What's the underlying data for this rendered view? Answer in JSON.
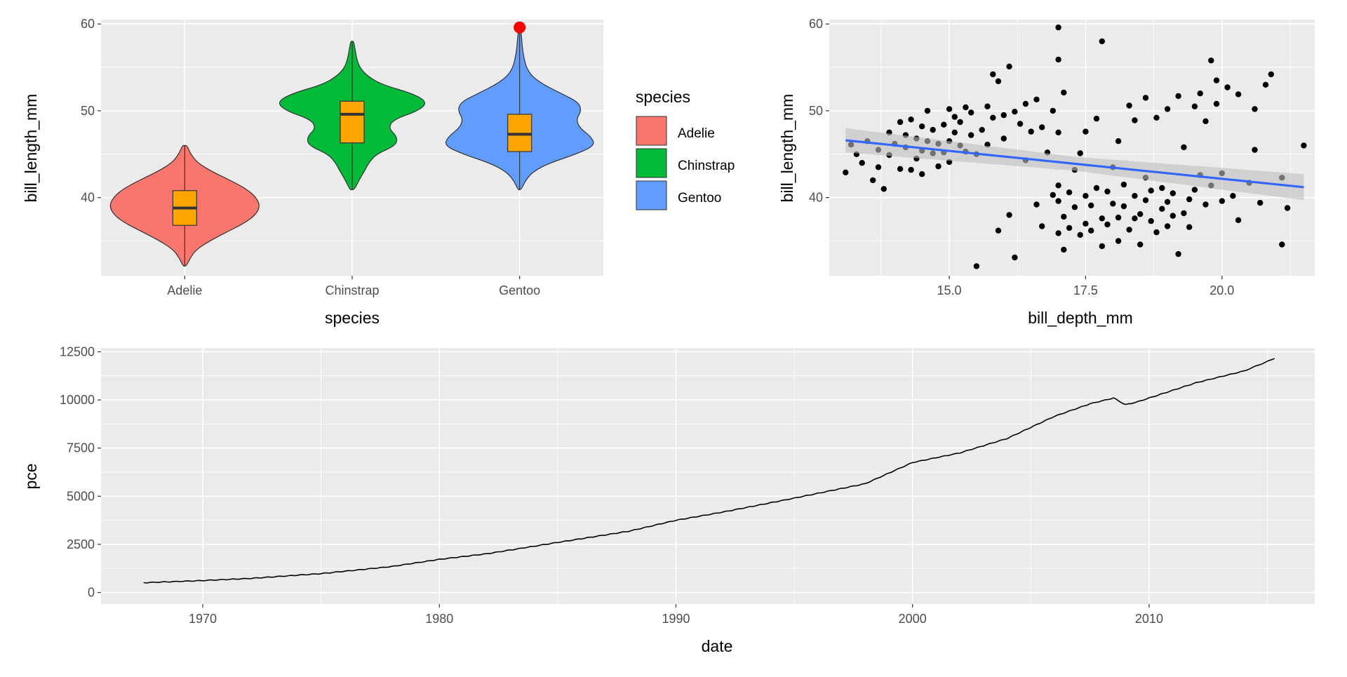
{
  "colors": {
    "panel_bg": "#EBEBEB",
    "grid_major": "#FFFFFF",
    "adelie": "#F8766D",
    "chinstrap": "#00BA38",
    "gentoo": "#619CFF",
    "boxplot_fill": "#FFA500",
    "highlight_point": "#FF0000",
    "smooth_line": "#3366FF",
    "smooth_band": "#BEBEBE",
    "points": "#000000",
    "line": "#000000"
  },
  "chart_data": [
    {
      "type": "violin",
      "xlabel": "species",
      "ylabel": "bill_length_mm",
      "categories": [
        "Adelie",
        "Chinstrap",
        "Gentoo"
      ],
      "ylim": [
        31.0,
        60.5
      ],
      "yticks": [
        40,
        50,
        60
      ],
      "grid": true,
      "legend": {
        "title": "species",
        "position": "right",
        "items": [
          "Adelie",
          "Chinstrap",
          "Gentoo"
        ]
      },
      "violins": [
        {
          "name": "Adelie",
          "min": 32.1,
          "max": 46.0,
          "profile": [
            [
              32.1,
              0.02
            ],
            [
              33,
              0.07
            ],
            [
              34,
              0.15
            ],
            [
              35,
              0.33
            ],
            [
              36,
              0.55
            ],
            [
              37,
              0.78
            ],
            [
              38,
              0.94
            ],
            [
              39,
              1.0
            ],
            [
              40,
              0.95
            ],
            [
              41,
              0.82
            ],
            [
              42,
              0.6
            ],
            [
              43,
              0.36
            ],
            [
              44,
              0.17
            ],
            [
              45,
              0.08
            ],
            [
              46,
              0.03
            ]
          ]
        },
        {
          "name": "Chinstrap",
          "min": 40.9,
          "max": 58.0,
          "profile": [
            [
              40.9,
              0.03
            ],
            [
              42,
              0.09
            ],
            [
              43,
              0.16
            ],
            [
              44,
              0.22
            ],
            [
              45,
              0.32
            ],
            [
              46,
              0.58
            ],
            [
              47,
              0.6
            ],
            [
              48,
              0.48
            ],
            [
              49,
              0.55
            ],
            [
              50,
              0.88
            ],
            [
              51,
              1.0
            ],
            [
              52,
              0.8
            ],
            [
              53,
              0.4
            ],
            [
              54,
              0.2
            ],
            [
              55,
              0.1
            ],
            [
              56,
              0.06
            ],
            [
              57,
              0.04
            ],
            [
              58,
              0.02
            ]
          ]
        },
        {
          "name": "Gentoo",
          "min": 40.9,
          "max": 59.6,
          "profile": [
            [
              40.9,
              0.02
            ],
            [
              42,
              0.08
            ],
            [
              43,
              0.18
            ],
            [
              44,
              0.4
            ],
            [
              45,
              0.75
            ],
            [
              46,
              1.0
            ],
            [
              47,
              0.95
            ],
            [
              48,
              0.8
            ],
            [
              49,
              0.75
            ],
            [
              50,
              0.82
            ],
            [
              51,
              0.78
            ],
            [
              52,
              0.55
            ],
            [
              53,
              0.32
            ],
            [
              54,
              0.16
            ],
            [
              55,
              0.09
            ],
            [
              56,
              0.06
            ],
            [
              57,
              0.04
            ],
            [
              58,
              0.03
            ],
            [
              59,
              0.02
            ],
            [
              59.6,
              0.01
            ]
          ]
        }
      ],
      "boxplots": [
        {
          "name": "Adelie",
          "q1": 36.8,
          "median": 38.8,
          "q3": 40.8
        },
        {
          "name": "Chinstrap",
          "q1": 46.3,
          "median": 49.6,
          "q3": 51.1
        },
        {
          "name": "Gentoo",
          "q1": 45.3,
          "median": 47.3,
          "q3": 49.6
        }
      ],
      "highlight": {
        "x": "Gentoo",
        "y": 59.6
      }
    },
    {
      "type": "scatter",
      "xlabel": "bill_depth_mm",
      "ylabel": "bill_length_mm",
      "xlim": [
        12.8,
        21.7
      ],
      "ylim": [
        31.0,
        60.5
      ],
      "xticks": [
        15.0,
        17.5,
        20.0
      ],
      "yticks": [
        40,
        50,
        60
      ],
      "grid": true,
      "smooth": {
        "method": "lm",
        "x": [
          13.1,
          21.5
        ],
        "y": [
          46.6,
          41.2
        ],
        "se_halfwidth": [
          1.4,
          0.8,
          1.5
        ]
      },
      "points": [
        [
          13.1,
          42.9
        ],
        [
          13.2,
          46.1
        ],
        [
          13.3,
          45.0
        ],
        [
          13.4,
          44.0
        ],
        [
          13.5,
          46.5
        ],
        [
          13.6,
          42.0
        ],
        [
          13.7,
          45.5
        ],
        [
          13.7,
          43.5
        ],
        [
          13.8,
          41.0
        ],
        [
          13.9,
          47.5
        ],
        [
          13.9,
          44.9
        ],
        [
          14.0,
          46.2
        ],
        [
          14.1,
          43.3
        ],
        [
          14.1,
          48.7
        ],
        [
          14.2,
          45.8
        ],
        [
          14.2,
          47.2
        ],
        [
          14.3,
          43.2
        ],
        [
          14.3,
          49.0
        ],
        [
          14.4,
          44.5
        ],
        [
          14.4,
          46.8
        ],
        [
          14.5,
          45.4
        ],
        [
          14.5,
          48.2
        ],
        [
          14.5,
          42.7
        ],
        [
          14.6,
          46.5
        ],
        [
          14.6,
          50.0
        ],
        [
          14.7,
          45.1
        ],
        [
          14.7,
          47.8
        ],
        [
          14.8,
          46.2
        ],
        [
          14.8,
          43.6
        ],
        [
          14.9,
          48.4
        ],
        [
          14.9,
          45.2
        ],
        [
          15.0,
          46.5
        ],
        [
          15.0,
          50.2
        ],
        [
          15.0,
          44.1
        ],
        [
          15.1,
          47.5
        ],
        [
          15.1,
          49.3
        ],
        [
          15.2,
          46.0
        ],
        [
          15.2,
          48.7
        ],
        [
          15.3,
          45.3
        ],
        [
          15.3,
          50.4
        ],
        [
          15.4,
          47.2
        ],
        [
          15.4,
          49.8
        ],
        [
          15.5,
          45.0
        ],
        [
          15.5,
          32.1
        ],
        [
          15.6,
          47.8
        ],
        [
          15.7,
          50.5
        ],
        [
          15.7,
          46.1
        ],
        [
          15.8,
          54.2
        ],
        [
          15.8,
          49.2
        ],
        [
          15.9,
          53.4
        ],
        [
          15.9,
          36.2
        ],
        [
          16.0,
          49.5
        ],
        [
          16.0,
          46.8
        ],
        [
          16.1,
          55.1
        ],
        [
          16.1,
          38.0
        ],
        [
          16.2,
          49.9
        ],
        [
          16.2,
          33.1
        ],
        [
          16.3,
          48.5
        ],
        [
          16.4,
          50.8
        ],
        [
          16.4,
          44.3
        ],
        [
          16.5,
          47.6
        ],
        [
          16.6,
          51.3
        ],
        [
          16.6,
          39.2
        ],
        [
          16.7,
          48.1
        ],
        [
          16.7,
          36.7
        ],
        [
          16.8,
          45.2
        ],
        [
          16.9,
          50.0
        ],
        [
          16.9,
          40.3
        ],
        [
          17.0,
          41.4
        ],
        [
          17.0,
          35.9
        ],
        [
          17.0,
          39.6
        ],
        [
          17.0,
          47.5
        ],
        [
          17.0,
          59.6
        ],
        [
          17.0,
          55.9
        ],
        [
          17.1,
          37.8
        ],
        [
          17.1,
          34.0
        ],
        [
          17.1,
          52.1
        ],
        [
          17.2,
          40.6
        ],
        [
          17.2,
          36.5
        ],
        [
          17.3,
          43.2
        ],
        [
          17.3,
          38.9
        ],
        [
          17.4,
          35.7
        ],
        [
          17.4,
          45.1
        ],
        [
          17.5,
          40.2
        ],
        [
          17.5,
          37.0
        ],
        [
          17.5,
          47.6
        ],
        [
          17.6,
          39.1
        ],
        [
          17.6,
          36.2
        ],
        [
          17.7,
          41.1
        ],
        [
          17.7,
          49.1
        ],
        [
          17.8,
          37.6
        ],
        [
          17.8,
          34.4
        ],
        [
          17.8,
          58.0
        ],
        [
          17.9,
          40.7
        ],
        [
          17.9,
          36.9
        ],
        [
          18.0,
          39.3
        ],
        [
          18.0,
          43.5
        ],
        [
          18.1,
          37.7
        ],
        [
          18.1,
          35.0
        ],
        [
          18.1,
          46.5
        ],
        [
          18.2,
          41.5
        ],
        [
          18.2,
          39.0
        ],
        [
          18.3,
          36.3
        ],
        [
          18.3,
          50.6
        ],
        [
          18.4,
          40.2
        ],
        [
          18.4,
          37.6
        ],
        [
          18.4,
          48.9
        ],
        [
          18.5,
          38.1
        ],
        [
          18.5,
          34.6
        ],
        [
          18.6,
          39.7
        ],
        [
          18.6,
          42.3
        ],
        [
          18.6,
          51.5
        ],
        [
          18.7,
          37.3
        ],
        [
          18.7,
          40.8
        ],
        [
          18.8,
          36.0
        ],
        [
          18.8,
          49.2
        ],
        [
          18.9,
          38.7
        ],
        [
          18.9,
          41.1
        ],
        [
          19.0,
          39.5
        ],
        [
          19.0,
          36.7
        ],
        [
          19.0,
          50.2
        ],
        [
          19.1,
          40.5
        ],
        [
          19.1,
          37.9
        ],
        [
          19.2,
          33.5
        ],
        [
          19.2,
          51.7
        ],
        [
          19.3,
          38.2
        ],
        [
          19.3,
          45.8
        ],
        [
          19.4,
          39.8
        ],
        [
          19.4,
          36.6
        ],
        [
          19.5,
          50.5
        ],
        [
          19.5,
          40.9
        ],
        [
          19.6,
          42.6
        ],
        [
          19.6,
          52.0
        ],
        [
          19.7,
          39.2
        ],
        [
          19.7,
          48.8
        ],
        [
          19.8,
          55.8
        ],
        [
          19.8,
          41.4
        ],
        [
          19.9,
          50.8
        ],
        [
          19.9,
          53.5
        ],
        [
          20.0,
          39.6
        ],
        [
          20.0,
          42.8
        ],
        [
          20.1,
          52.7
        ],
        [
          20.2,
          40.2
        ],
        [
          20.3,
          37.4
        ],
        [
          20.3,
          51.9
        ],
        [
          20.5,
          41.7
        ],
        [
          20.6,
          45.5
        ],
        [
          20.6,
          50.2
        ],
        [
          20.7,
          39.4
        ],
        [
          20.8,
          53.0
        ],
        [
          20.9,
          54.2
        ],
        [
          21.1,
          34.6
        ],
        [
          21.1,
          42.3
        ],
        [
          21.2,
          38.8
        ],
        [
          21.5,
          46.0
        ]
      ]
    },
    {
      "type": "line",
      "xlabel": "date",
      "ylabel": "pce",
      "xlim": [
        1965.7,
        2017.0
      ],
      "ylim": [
        -600,
        12700
      ],
      "xticks": [
        1970,
        1980,
        1990,
        2000,
        2010
      ],
      "yticks": [
        0,
        2500,
        5000,
        7500,
        10000,
        12500
      ],
      "grid": true,
      "series": [
        {
          "x": [
            1967.5,
            1970,
            1972,
            1975,
            1978,
            1980,
            1982,
            1985,
            1988,
            1990,
            1992,
            1995,
            1998,
            2000,
            2002,
            2004,
            2006,
            2007.5,
            2008.5,
            2009,
            2009.5,
            2010,
            2012,
            2014,
            2015.3
          ],
          "y": [
            507,
            620,
            730,
            980,
            1350,
            1720,
            2010,
            2600,
            3180,
            3750,
            4180,
            4900,
            5650,
            6750,
            7250,
            8000,
            9150,
            9800,
            10100,
            9750,
            9900,
            10100,
            10900,
            11500,
            12150
          ]
        }
      ]
    }
  ]
}
